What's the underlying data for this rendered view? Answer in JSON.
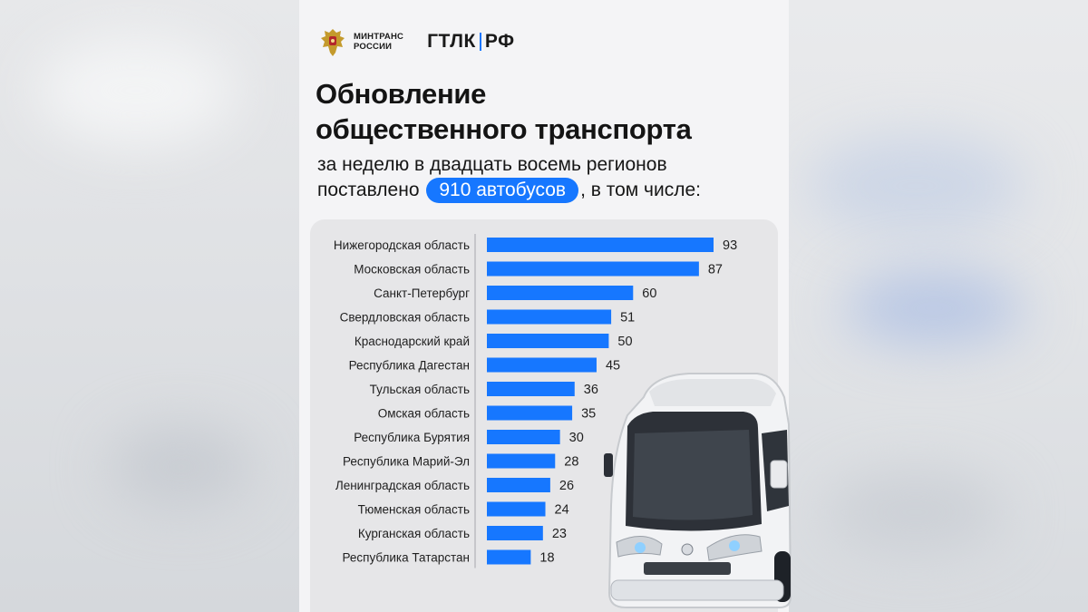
{
  "header": {
    "ministry_lines": [
      "МИНТРАНС",
      "РОССИИ"
    ],
    "company_left": "ГТЛК",
    "company_right": "РФ"
  },
  "title_lines": [
    "Обновление",
    "общественного транспорта"
  ],
  "subtitle": {
    "line1": "за неделю в двадцать восемь регионов",
    "line2_before": "поставлено",
    "highlight": "910 автобусов",
    "line2_after": ", в том числе:"
  },
  "colors": {
    "accent": "#1677ff",
    "panel": "#e6e6e8",
    "poster": "#f4f4f6"
  },
  "icons": [
    "emblem-icon",
    "bus-photo"
  ],
  "chart_data": {
    "type": "bar",
    "orientation": "horizontal",
    "categories": [
      "Нижегородская область",
      "Московская область",
      "Санкт-Петербург",
      "Свердловская область",
      "Краснодарский край",
      "Республика Дагестан",
      "Тульская область",
      "Омская область",
      "Республика Бурятия",
      "Республика Марий-Эл",
      "Ленинградская область",
      "Тюменская область",
      "Курганская область",
      "Республика Татарстан"
    ],
    "values": [
      93,
      87,
      60,
      51,
      50,
      45,
      36,
      35,
      30,
      28,
      26,
      24,
      23,
      18
    ],
    "xlim": [
      0,
      93
    ],
    "grid": false,
    "legend": "none"
  }
}
